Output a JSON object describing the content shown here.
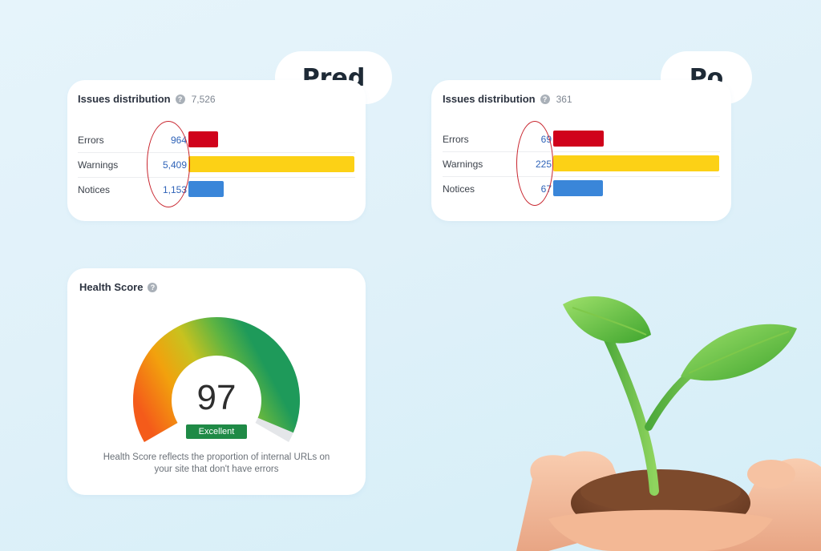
{
  "before": {
    "tag": "Pred",
    "title": "Issues distribution",
    "total": "7,526",
    "rows": [
      {
        "label": "Errors",
        "value": "964",
        "count": 964,
        "color": "#d0021b"
      },
      {
        "label": "Warnings",
        "value": "5,409",
        "count": 5409,
        "color": "#fcd116"
      },
      {
        "label": "Notices",
        "value": "1,153",
        "count": 1153,
        "color": "#3a86d9"
      }
    ]
  },
  "after": {
    "tag": "Po",
    "title": "Issues distribution",
    "total": "361",
    "rows": [
      {
        "label": "Errors",
        "value": "69",
        "count": 69,
        "color": "#d0021b"
      },
      {
        "label": "Warnings",
        "value": "225",
        "count": 225,
        "color": "#fcd116"
      },
      {
        "label": "Notices",
        "value": "67",
        "count": 67,
        "color": "#3a86d9"
      }
    ]
  },
  "health": {
    "title": "Health Score",
    "score": "97",
    "score_value": 97,
    "badge": "Excellent",
    "caption_line1": "Health Score reflects the proportion of internal URLs on",
    "caption_line2": "your site that don't have errors"
  },
  "colors": {
    "highlight_oval": "#c8242d",
    "value_text": "#2f63b8",
    "badge_bg": "#1f8a46"
  },
  "icons": {
    "help": "question-circle-icon",
    "illustration": "seedling-in-hands-illustration"
  }
}
